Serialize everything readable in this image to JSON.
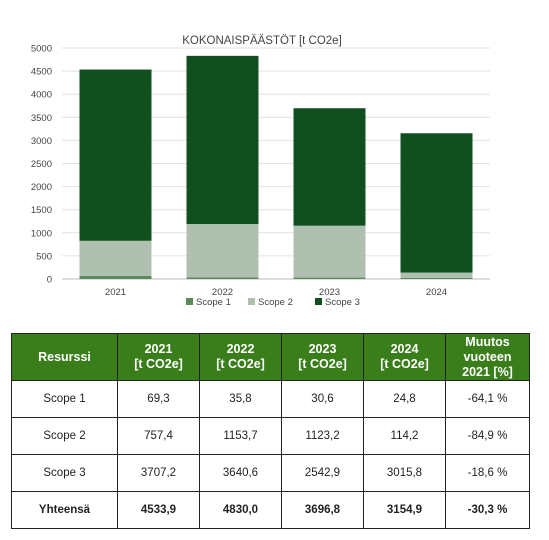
{
  "chart_data": {
    "type": "bar",
    "stacked": true,
    "title": "KOKONAISPÄÄSTÖT [t CO2e]",
    "categories": [
      "2021",
      "2022",
      "2023",
      "2024"
    ],
    "series": [
      {
        "name": "Scope 1",
        "color": "#5a8a5a",
        "values": [
          69.3,
          35.8,
          30.6,
          24.8
        ]
      },
      {
        "name": "Scope 2",
        "color": "#b0c0b0",
        "values": [
          757.4,
          1153.7,
          1123.2,
          114.2
        ]
      },
      {
        "name": "Scope 3",
        "color": "#124f1f",
        "values": [
          3707.2,
          3640.6,
          2542.9,
          3015.8
        ]
      }
    ],
    "ylim": [
      0,
      5000
    ],
    "yticks": [
      0,
      500,
      1000,
      1500,
      2000,
      2500,
      3000,
      3500,
      4000,
      4500,
      5000
    ],
    "grid": true,
    "legend": "bottom"
  },
  "table": {
    "headers": [
      "Resurssi",
      "2021\n[t CO2e]",
      "2022\n[t CO2e]",
      "2023\n[t CO2e]",
      "2024\n[t CO2e]",
      "Muutos\nvuoteen\n2021 [%]"
    ],
    "rows": [
      [
        "Scope 1",
        "69,3",
        "35,8",
        "30,6",
        "24,8",
        "-64,1 %"
      ],
      [
        "Scope 2",
        "757,4",
        "1153,7",
        "1123,2",
        "114,2",
        "-84,9 %"
      ],
      [
        "Scope 3",
        "3707,2",
        "3640,6",
        "2542,9",
        "3015,8",
        "-18,6 %"
      ],
      [
        "Yhteensä",
        "4533,9",
        "4830,0",
        "3696,8",
        "3154,9",
        "-30,3 %"
      ]
    ]
  }
}
